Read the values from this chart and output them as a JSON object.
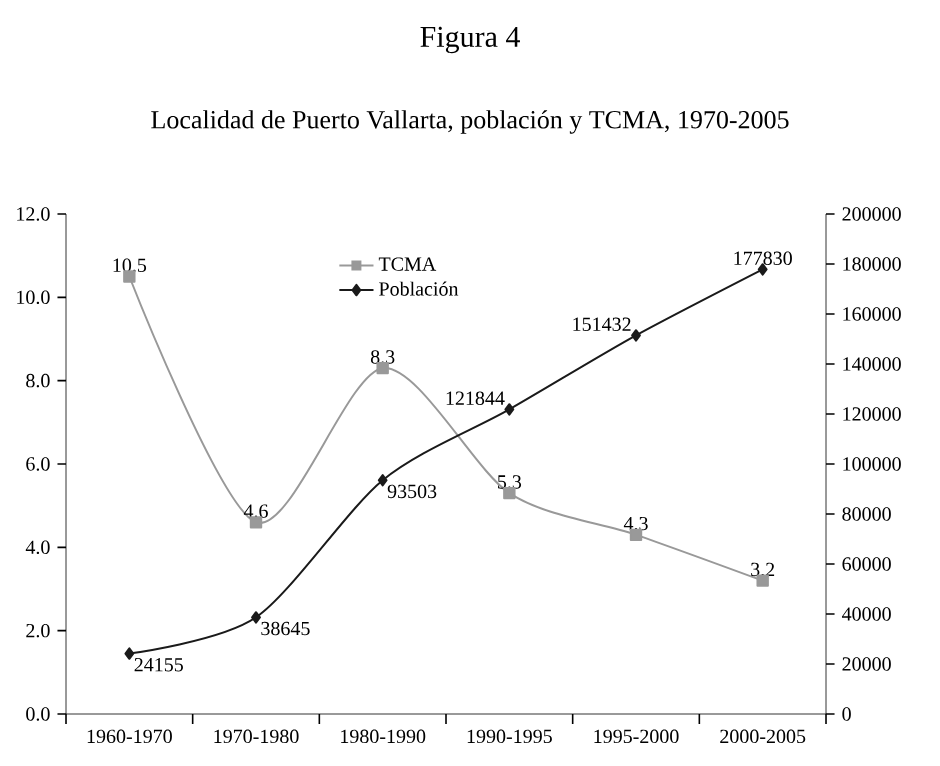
{
  "chart_data": {
    "type": "line",
    "title": "Figura 4",
    "subtitle": "Localidad de Puerto Vallarta, población y TCMA, 1970-2005",
    "categories": [
      "1960-1970",
      "1970-1980",
      "1980-1990",
      "1990-1995",
      "1995-2000",
      "2000-2005"
    ],
    "series": [
      {
        "name": "TCMA",
        "color": "#999999",
        "marker": "square",
        "values": [
          10.5,
          4.6,
          8.3,
          5.3,
          4.3,
          3.2
        ]
      },
      {
        "name": "Población",
        "color": "#1a1a1a",
        "marker": "diamond",
        "axis": "y2",
        "values": [
          24155,
          38645,
          93503,
          121844,
          151432,
          177830
        ]
      }
    ],
    "ylim": [
      0,
      12
    ],
    "yticks": [
      {
        "value": 0,
        "label": "0.0"
      },
      {
        "value": 2,
        "label": "2.0"
      },
      {
        "value": 4,
        "label": "4.0"
      },
      {
        "value": 6,
        "label": "6.0"
      },
      {
        "value": 8,
        "label": "8.0"
      },
      {
        "value": 10,
        "label": "10.0"
      },
      {
        "value": 12,
        "label": "12.0"
      }
    ],
    "y2lim": [
      0,
      200000
    ],
    "y2ticks": [
      0,
      20000,
      40000,
      60000,
      80000,
      100000,
      120000,
      140000,
      160000,
      180000,
      200000
    ],
    "data_labels": true,
    "legend": "top",
    "line_style": "solid",
    "grid": false
  }
}
